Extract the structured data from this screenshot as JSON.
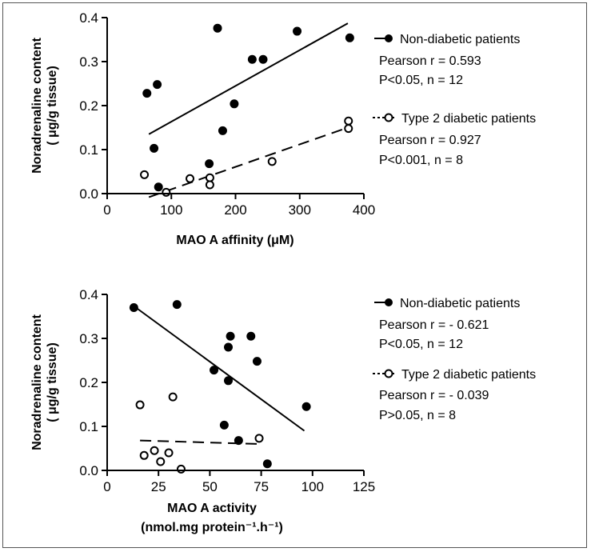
{
  "chart_data": [
    {
      "type": "scatter",
      "xlabel": "MAO A affinity (μM)",
      "ylabel_line1": "Noradrenaline content",
      "ylabel_line2": "( μg/g tissue)",
      "xlim": [
        0,
        400
      ],
      "ylim": [
        0,
        0.4
      ],
      "xticks": [
        "0",
        "100",
        "200",
        "300",
        "400"
      ],
      "yticks": [
        "0.0",
        "0.1",
        "0.2",
        "0.3",
        "0.4"
      ],
      "legend_position": "right",
      "series": [
        {
          "name": "Non-diabetic patients",
          "marker": "filled-circle",
          "points": [
            [
              62,
              0.228
            ],
            [
              73,
              0.103
            ],
            [
              78,
              0.248
            ],
            [
              80,
              0.015
            ],
            [
              159,
              0.068
            ],
            [
              172,
              0.376
            ],
            [
              180,
              0.143
            ],
            [
              198,
              0.204
            ],
            [
              226,
              0.305
            ],
            [
              243,
              0.305
            ],
            [
              296,
              0.369
            ],
            [
              378,
              0.354
            ]
          ],
          "fit": {
            "x": [
              65,
              375
            ],
            "y": [
              0.135,
              0.387
            ],
            "style": "solid"
          },
          "stats": [
            "Pearson r = 0.593",
            "P<0.05, n = 12"
          ]
        },
        {
          "name": "Type 2 diabetic patients",
          "marker": "open-circle",
          "points": [
            [
              58,
              0.043
            ],
            [
              92,
              0.003
            ],
            [
              129,
              0.034
            ],
            [
              160,
              0.036
            ],
            [
              160,
              0.02
            ],
            [
              257,
              0.073
            ],
            [
              376,
              0.165
            ],
            [
              376,
              0.148
            ]
          ],
          "fit": {
            "x": [
              65,
              375
            ],
            "y": [
              -0.008,
              0.15
            ],
            "style": "dashed"
          },
          "stats": [
            "Pearson r = 0.927",
            "P<0.001, n = 8"
          ]
        }
      ]
    },
    {
      "type": "scatter",
      "xlabel_line1": "MAO A activity",
      "xlabel_line2": "(nmol.mg protein⁻¹.h⁻¹)",
      "ylabel_line1": "Noradrenaline content",
      "ylabel_line2": "( μg/g tissue)",
      "xlim": [
        0,
        125
      ],
      "ylim": [
        0,
        0.4
      ],
      "xticks": [
        "0",
        "25",
        "50",
        "75",
        "100",
        "125"
      ],
      "yticks": [
        "0.0",
        "0.1",
        "0.2",
        "0.3",
        "0.4"
      ],
      "legend_position": "right",
      "series": [
        {
          "name": "Non-diabetic patients",
          "marker": "filled-circle",
          "points": [
            [
              13,
              0.37
            ],
            [
              34,
              0.377
            ],
            [
              52,
              0.228
            ],
            [
              57,
              0.103
            ],
            [
              59,
              0.28
            ],
            [
              59,
              0.204
            ],
            [
              60,
              0.305
            ],
            [
              64,
              0.068
            ],
            [
              70,
              0.305
            ],
            [
              73,
              0.248
            ],
            [
              78,
              0.015
            ],
            [
              97,
              0.145
            ]
          ],
          "fit": {
            "x": [
              14,
              96
            ],
            "y": [
              0.37,
              0.09
            ],
            "style": "solid"
          },
          "stats": [
            "Pearson r = - 0.621",
            "P<0.05, n = 12"
          ]
        },
        {
          "name": "Type 2 diabetic patients",
          "marker": "open-circle",
          "points": [
            [
              16,
              0.149
            ],
            [
              18,
              0.034
            ],
            [
              23,
              0.045
            ],
            [
              26,
              0.02
            ],
            [
              30,
              0.04
            ],
            [
              32,
              0.167
            ],
            [
              36,
              0.003
            ],
            [
              74,
              0.073
            ]
          ],
          "fit": {
            "x": [
              16,
              74
            ],
            "y": [
              0.068,
              0.06
            ],
            "style": "dashed"
          },
          "stats": [
            "Pearson r = - 0.039",
            "P>0.05, n = 8"
          ]
        }
      ]
    }
  ]
}
